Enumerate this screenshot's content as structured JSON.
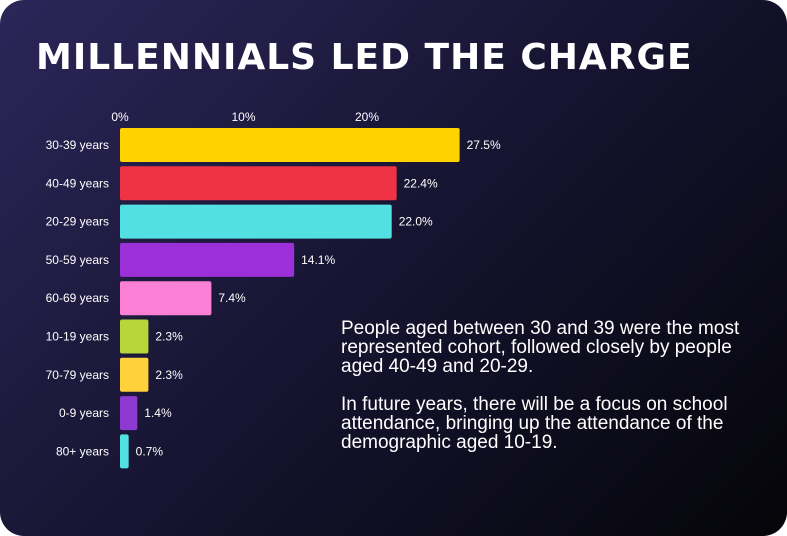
{
  "title": "MILLENNIALS LED THE CHARGE",
  "caption": {
    "paragraph1": "People aged between 30 and 39 were the most represented cohort, followed closely by people aged 40-49 and 20-29.",
    "paragraph2": "In future years, there will be a focus on school attendance, bringing up the attendance of the demographic aged 10-19."
  },
  "chart_data": {
    "type": "bar",
    "orientation": "horizontal",
    "categories": [
      "30-39 years",
      "40-49 years",
      "20-29 years",
      "50-59 years",
      "60-69 years",
      "10-19 years",
      "70-79 years",
      "0-9 years",
      "80+ years"
    ],
    "values": [
      27.5,
      22.4,
      22.0,
      14.1,
      7.4,
      2.3,
      2.3,
      1.4,
      0.7
    ],
    "value_labels": [
      "27.5%",
      "22.4%",
      "22.0%",
      "14.1%",
      "7.4%",
      "2.3%",
      "2.3%",
      "1.4%",
      "0.7%"
    ],
    "colors": [
      "#ffd200",
      "#ef3344",
      "#52e0e3",
      "#9b30d9",
      "#fc7fd6",
      "#b8d63a",
      "#ffd23c",
      "#8e3ad1",
      "#52e0e3"
    ],
    "xticks": [
      0,
      10,
      20
    ],
    "xtick_labels": [
      "0%",
      "10%",
      "20%"
    ],
    "xlim": [
      0,
      27.5
    ],
    "xaxis_position": "top",
    "grid": false,
    "legend": false
  }
}
